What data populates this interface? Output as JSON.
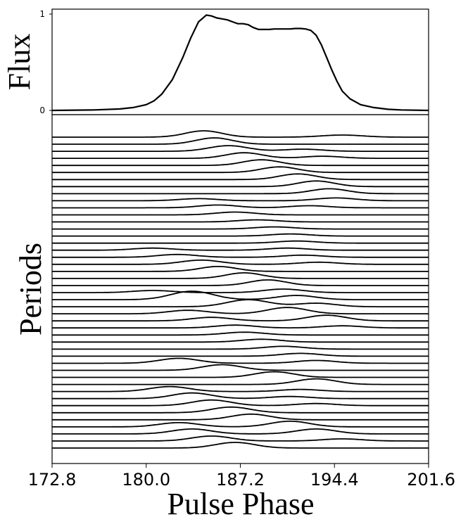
{
  "chart_data": [
    {
      "type": "line",
      "panel": "top",
      "xlabel": "",
      "ylabel": "Flux",
      "xlim": [
        172.8,
        201.6
      ],
      "ylim": [
        0,
        1
      ],
      "yticks": [
        "0",
        "1"
      ],
      "grid": false,
      "x": [
        172.8,
        176.0,
        178.0,
        179.0,
        180.0,
        180.6,
        181.2,
        182.0,
        182.8,
        183.4,
        184.0,
        184.6,
        185.0,
        185.4,
        185.8,
        186.2,
        186.6,
        187.0,
        187.4,
        187.8,
        188.2,
        188.6,
        189.0,
        189.4,
        189.8,
        190.2,
        190.6,
        191.0,
        191.4,
        191.8,
        192.2,
        192.6,
        193.0,
        193.4,
        193.8,
        194.2,
        194.6,
        195.0,
        195.6,
        196.4,
        197.4,
        198.5,
        199.5,
        201.6
      ],
      "y": [
        0.0,
        0.005,
        0.015,
        0.03,
        0.06,
        0.1,
        0.17,
        0.32,
        0.55,
        0.75,
        0.92,
        0.99,
        0.98,
        0.96,
        0.95,
        0.94,
        0.92,
        0.9,
        0.9,
        0.89,
        0.86,
        0.84,
        0.84,
        0.84,
        0.845,
        0.845,
        0.845,
        0.845,
        0.85,
        0.85,
        0.845,
        0.83,
        0.78,
        0.68,
        0.55,
        0.42,
        0.3,
        0.2,
        0.12,
        0.06,
        0.03,
        0.012,
        0.005,
        0.0
      ]
    },
    {
      "type": "line",
      "panel": "bottom",
      "xlabel": "Pulse Phase",
      "ylabel": "Periods",
      "xlim": [
        172.8,
        201.6
      ],
      "xticks": [
        "172.8",
        "180.0",
        "187.2",
        "194.4",
        "201.6"
      ],
      "grid": false,
      "series_shape": "baseline with one or more gaussian bumps (center, height in px, width in phase units)",
      "series": [
        {
          "bumps": [
            [
              184.4,
              9,
              1.4
            ],
            [
              195.0,
              3,
              1.6
            ]
          ]
        },
        {
          "bumps": [
            [
              185.2,
              9,
              1.4
            ]
          ]
        },
        {
          "bumps": [
            [
              186.3,
              8,
              1.5
            ],
            [
              192.0,
              3,
              1.5
            ]
          ]
        },
        {
          "bumps": [
            [
              187.5,
              8,
              1.4
            ],
            [
              193.5,
              3,
              1.5
            ]
          ]
        },
        {
          "bumps": [
            [
              188.8,
              8,
              1.4
            ]
          ]
        },
        {
          "bumps": [
            [
              190.2,
              8,
              1.4
            ]
          ]
        },
        {
          "bumps": [
            [
              191.6,
              8,
              1.4
            ]
          ]
        },
        {
          "bumps": [
            [
              193.0,
              8,
              1.4
            ]
          ]
        },
        {
          "bumps": [
            [
              194.0,
              7,
              1.4
            ]
          ]
        },
        {
          "bumps": [
            [
              184.0,
              3,
              1.5
            ],
            [
              194.5,
              4,
              1.5
            ]
          ]
        },
        {
          "bumps": [
            [
              185.5,
              4,
              1.5
            ],
            [
              192.5,
              3,
              1.5
            ]
          ]
        },
        {
          "bumps": [
            [
              186.8,
              4,
              1.5
            ]
          ]
        },
        {
          "bumps": [
            [
              188.5,
              3,
              1.5
            ]
          ]
        },
        {
          "bumps": [
            [
              189.8,
              3,
              1.5
            ]
          ]
        },
        {
          "bumps": [
            [
              191.0,
              3,
              1.5
            ]
          ]
        },
        {
          "bumps": [
            [
              191.5,
              3,
              1.5
            ]
          ]
        },
        {
          "bumps": [
            [
              180.5,
              3,
              1.5
            ],
            [
              190.8,
              3,
              1.5
            ]
          ]
        },
        {
          "bumps": [
            [
              182.4,
              4,
              1.5
            ],
            [
              192.0,
              3,
              1.5
            ]
          ]
        },
        {
          "bumps": [
            [
              184.2,
              6,
              1.5
            ],
            [
              193.2,
              3,
              1.5
            ]
          ]
        },
        {
          "bumps": [
            [
              185.5,
              7,
              1.4
            ]
          ]
        },
        {
          "bumps": [
            [
              187.5,
              8,
              1.4
            ]
          ]
        },
        {
          "bumps": [
            [
              189.3,
              8,
              1.4
            ]
          ]
        },
        {
          "bumps": [
            [
              180.5,
              3,
              1.5
            ],
            [
              190.5,
              5,
              1.5
            ]
          ]
        },
        {
          "bumps": [
            [
              183.5,
              12,
              1.6
            ],
            [
              191.5,
              6,
              1.5
            ]
          ]
        },
        {
          "bumps": [
            [
              187.8,
              10,
              1.6
            ],
            [
              193.0,
              5,
              1.5
            ]
          ]
        },
        {
          "bumps": [
            [
              183.2,
              5,
              1.5
            ],
            [
              190.8,
              9,
              1.5
            ]
          ]
        },
        {
          "bumps": [
            [
              185.0,
              5,
              1.5
            ],
            [
              193.8,
              8,
              1.5
            ]
          ]
        },
        {
          "bumps": [
            [
              186.8,
              4,
              1.5
            ],
            [
              195.0,
              3,
              1.5
            ]
          ]
        },
        {
          "bumps": [
            [
              187.5,
              4,
              1.5
            ]
          ]
        },
        {
          "bumps": [
            [
              188.8,
              4,
              1.5
            ]
          ]
        },
        {
          "bumps": [
            [
              190.5,
              4,
              1.5
            ]
          ]
        },
        {
          "bumps": [
            [
              191.8,
              4,
              1.5
            ]
          ]
        },
        {
          "bumps": [
            [
              182.5,
              7,
              1.5
            ],
            [
              193.0,
              4,
              1.5
            ]
          ]
        },
        {
          "bumps": [
            [
              185.8,
              8,
              1.5
            ]
          ]
        },
        {
          "bumps": [
            [
              189.8,
              8,
              1.5
            ]
          ]
        },
        {
          "bumps": [
            [
              193.0,
              8,
              1.5
            ]
          ]
        },
        {
          "bumps": [
            [
              181.8,
              7,
              1.5
            ],
            [
              191.8,
              3,
              1.5
            ]
          ]
        },
        {
          "bumps": [
            [
              183.5,
              8,
              1.5
            ],
            [
              191.0,
              3,
              1.5
            ]
          ]
        },
        {
          "bumps": [
            [
              185.0,
              8,
              1.5
            ],
            [
              193.0,
              3,
              1.5
            ]
          ]
        },
        {
          "bumps": [
            [
              186.5,
              8,
              1.5
            ]
          ]
        },
        {
          "bumps": [
            [
              188.0,
              8,
              1.5
            ]
          ]
        },
        {
          "bumps": [
            [
              182.5,
              6,
              1.5
            ],
            [
              191.0,
              8,
              1.5
            ]
          ]
        },
        {
          "bumps": [
            [
              183.5,
              7,
              1.5
            ],
            [
              193.0,
              7,
              1.5
            ]
          ]
        },
        {
          "bumps": [
            [
              185.0,
              7,
              1.5
            ],
            [
              195.0,
              3,
              1.5
            ]
          ]
        },
        {
          "bumps": [
            [
              186.8,
              8,
              1.5
            ]
          ]
        }
      ]
    }
  ]
}
